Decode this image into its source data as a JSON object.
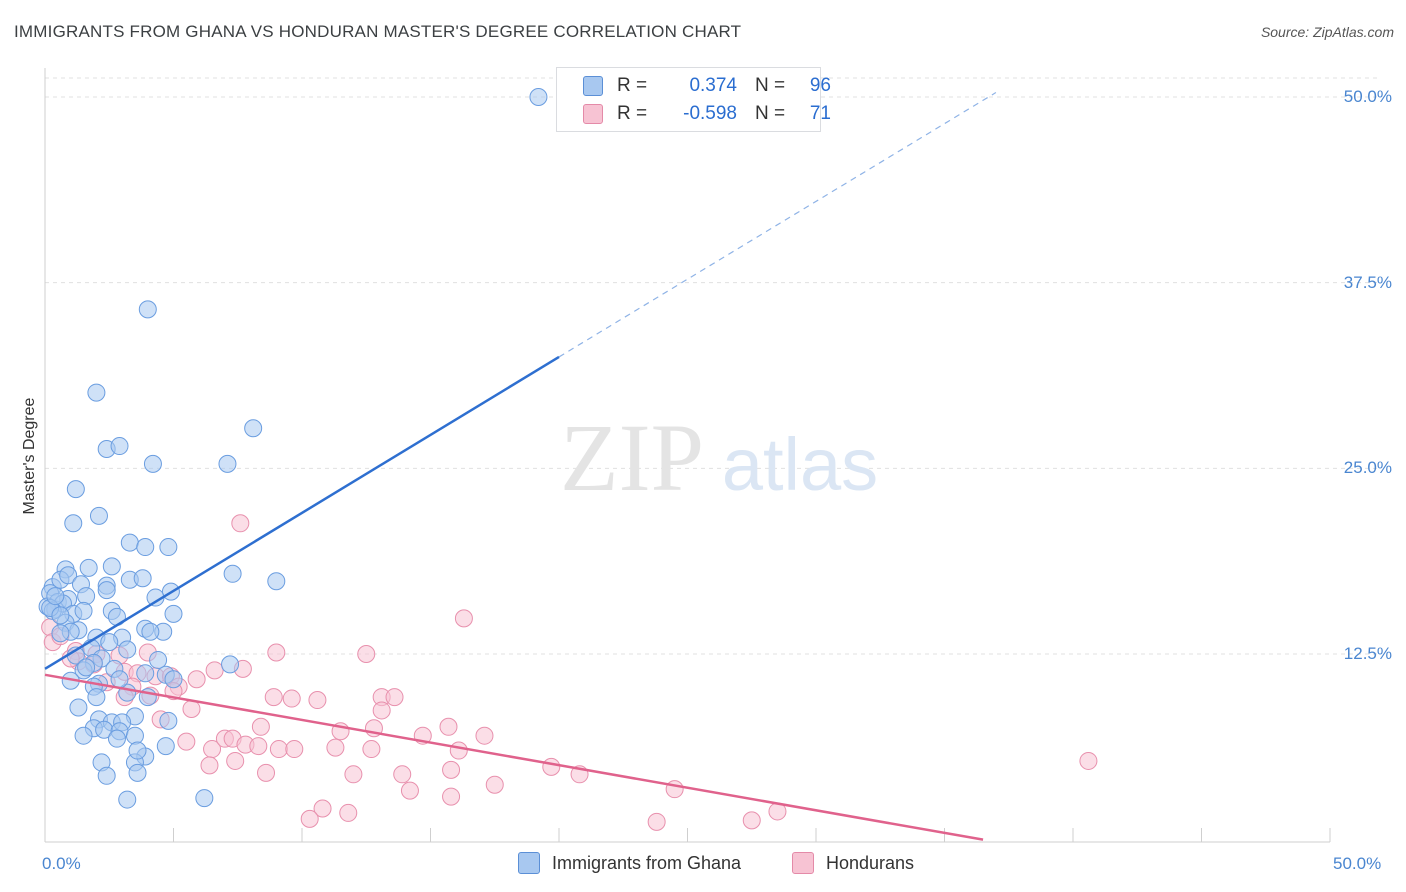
{
  "header": {
    "title": "IMMIGRANTS FROM GHANA VS HONDURAN MASTER'S DEGREE CORRELATION CHART",
    "source": "Source: ZipAtlas.com"
  },
  "watermark": {
    "zip": "ZIP",
    "atlas": "atlas"
  },
  "legend": {
    "rows": [
      {
        "r_label": "R =",
        "r_value": "0.374",
        "n_label": "N =",
        "n_value": "96",
        "color": "#a8c8f0",
        "border": "#5b8fd6"
      },
      {
        "r_label": "R =",
        "r_value": "-0.598",
        "n_label": "N =",
        "n_value": "71",
        "color": "#f7c3d3",
        "border": "#e48aa8"
      }
    ]
  },
  "bottom_legend": {
    "items": [
      {
        "label": "Immigrants from Ghana",
        "color": "#a8c8f0",
        "border": "#5b8fd6"
      },
      {
        "label": "Hondurans",
        "color": "#f7c3d3",
        "border": "#e48aa8"
      }
    ]
  },
  "chart_data": {
    "type": "scatter",
    "title": "IMMIGRANTS FROM GHANA VS HONDURAN MASTER'S DEGREE CORRELATION CHART",
    "xlabel": "",
    "ylabel": "Master's Degree",
    "xlim": [
      0,
      50
    ],
    "ylim": [
      0,
      50
    ],
    "y_ticks": [
      "12.5%",
      "25.0%",
      "37.5%",
      "50.0%"
    ],
    "y_tick_values": [
      12.5,
      25.0,
      37.5,
      50.0
    ],
    "x_tick_labels": [
      "0.0%",
      "50.0%"
    ],
    "x_tick_label_values": [
      0,
      50
    ],
    "x_minor_ticks": [
      5,
      10,
      15,
      20,
      25,
      30,
      35,
      40,
      45,
      50
    ],
    "grid": true,
    "series": [
      {
        "name": "Immigrants from Ghana",
        "color": "#a8c8f0",
        "stroke": "#6a9de0",
        "trend": {
          "x0": 0,
          "y0": 11.5,
          "x1": 20,
          "y1": 32.5,
          "dashed_to_x": 37,
          "dashed_to_y": 50.3,
          "color": "#2e6fd0"
        },
        "points": [
          [
            19.2,
            50.0
          ],
          [
            4.0,
            35.7
          ],
          [
            2.0,
            30.1
          ],
          [
            2.4,
            26.3
          ],
          [
            2.9,
            26.5
          ],
          [
            8.1,
            27.7
          ],
          [
            4.2,
            25.3
          ],
          [
            7.1,
            25.3
          ],
          [
            1.2,
            23.6
          ],
          [
            1.1,
            21.3
          ],
          [
            2.1,
            21.8
          ],
          [
            3.3,
            20.0
          ],
          [
            3.9,
            19.7
          ],
          [
            4.8,
            19.7
          ],
          [
            0.8,
            18.2
          ],
          [
            1.7,
            18.3
          ],
          [
            2.6,
            18.4
          ],
          [
            7.3,
            17.9
          ],
          [
            9.0,
            17.4
          ],
          [
            0.3,
            17.0
          ],
          [
            0.6,
            17.5
          ],
          [
            0.9,
            17.8
          ],
          [
            1.4,
            17.2
          ],
          [
            2.4,
            17.1
          ],
          [
            3.3,
            17.5
          ],
          [
            3.8,
            17.6
          ],
          [
            4.9,
            16.7
          ],
          [
            0.2,
            16.6
          ],
          [
            0.5,
            16.0
          ],
          [
            0.9,
            16.2
          ],
          [
            1.6,
            16.4
          ],
          [
            4.3,
            16.3
          ],
          [
            0.1,
            15.7
          ],
          [
            0.4,
            15.5
          ],
          [
            0.7,
            15.9
          ],
          [
            1.1,
            15.2
          ],
          [
            1.5,
            15.4
          ],
          [
            2.6,
            15.4
          ],
          [
            2.8,
            15.0
          ],
          [
            5.0,
            15.2
          ],
          [
            0.3,
            15.4
          ],
          [
            0.8,
            14.6
          ],
          [
            1.3,
            14.1
          ],
          [
            2.0,
            13.6
          ],
          [
            3.0,
            13.6
          ],
          [
            4.6,
            14.0
          ],
          [
            3.9,
            14.2
          ],
          [
            1.0,
            14.0
          ],
          [
            0.6,
            13.9
          ],
          [
            1.8,
            12.9
          ],
          [
            3.2,
            12.8
          ],
          [
            2.2,
            12.2
          ],
          [
            1.9,
            11.9
          ],
          [
            2.7,
            11.5
          ],
          [
            1.5,
            11.4
          ],
          [
            7.2,
            11.8
          ],
          [
            3.9,
            11.2
          ],
          [
            4.7,
            11.1
          ],
          [
            5.0,
            10.8
          ],
          [
            1.0,
            10.7
          ],
          [
            2.1,
            10.5
          ],
          [
            1.9,
            10.3
          ],
          [
            2.0,
            9.6
          ],
          [
            3.2,
            9.9
          ],
          [
            4.0,
            9.6
          ],
          [
            1.3,
            8.9
          ],
          [
            3.5,
            8.3
          ],
          [
            4.8,
            8.0
          ],
          [
            2.1,
            8.1
          ],
          [
            2.6,
            7.9
          ],
          [
            3.0,
            7.9
          ],
          [
            1.9,
            7.5
          ],
          [
            2.3,
            7.4
          ],
          [
            2.9,
            7.3
          ],
          [
            3.5,
            7.0
          ],
          [
            1.5,
            7.0
          ],
          [
            2.8,
            6.8
          ],
          [
            4.7,
            6.3
          ],
          [
            3.9,
            5.6
          ],
          [
            2.2,
            5.2
          ],
          [
            3.5,
            5.2
          ],
          [
            3.6,
            4.5
          ],
          [
            2.4,
            4.3
          ],
          [
            3.2,
            2.7
          ],
          [
            6.2,
            2.8
          ],
          [
            4.1,
            14.0
          ],
          [
            2.4,
            16.8
          ],
          [
            0.2,
            15.6
          ],
          [
            0.6,
            15.1
          ],
          [
            1.2,
            12.4
          ],
          [
            2.9,
            10.8
          ],
          [
            3.6,
            6.0
          ],
          [
            1.6,
            11.6
          ],
          [
            2.5,
            13.3
          ],
          [
            4.4,
            12.1
          ],
          [
            0.4,
            16.4
          ]
        ]
      },
      {
        "name": "Hondurans",
        "color": "#f7c3d3",
        "stroke": "#e890ad",
        "trend": {
          "x0": 0,
          "y0": 11.1,
          "x1": 36.5,
          "y1": 0,
          "color": "#e0628c"
        },
        "points": [
          [
            0.2,
            14.3
          ],
          [
            0.3,
            13.3
          ],
          [
            0.6,
            13.7
          ],
          [
            1.2,
            12.7
          ],
          [
            2.0,
            12.5
          ],
          [
            2.9,
            12.4
          ],
          [
            1.3,
            12.0
          ],
          [
            1.9,
            11.8
          ],
          [
            3.1,
            11.3
          ],
          [
            3.6,
            11.2
          ],
          [
            4.3,
            11.0
          ],
          [
            4.9,
            11.0
          ],
          [
            5.9,
            10.8
          ],
          [
            6.6,
            11.4
          ],
          [
            2.4,
            10.6
          ],
          [
            3.4,
            10.3
          ],
          [
            5.2,
            10.3
          ],
          [
            5.0,
            10.0
          ],
          [
            9.0,
            12.6
          ],
          [
            12.5,
            12.5
          ],
          [
            16.3,
            14.9
          ],
          [
            7.6,
            21.3
          ],
          [
            7.7,
            11.5
          ],
          [
            3.1,
            9.6
          ],
          [
            4.1,
            9.7
          ],
          [
            8.9,
            9.6
          ],
          [
            9.6,
            9.5
          ],
          [
            10.6,
            9.4
          ],
          [
            13.1,
            9.6
          ],
          [
            13.6,
            9.6
          ],
          [
            13.1,
            8.7
          ],
          [
            5.7,
            8.8
          ],
          [
            4.5,
            8.1
          ],
          [
            8.4,
            7.6
          ],
          [
            11.5,
            7.3
          ],
          [
            12.8,
            7.5
          ],
          [
            14.7,
            7.0
          ],
          [
            15.7,
            7.6
          ],
          [
            17.1,
            7.0
          ],
          [
            5.5,
            6.6
          ],
          [
            6.5,
            6.1
          ],
          [
            7.0,
            6.8
          ],
          [
            7.3,
            6.8
          ],
          [
            7.8,
            6.4
          ],
          [
            8.3,
            6.3
          ],
          [
            9.1,
            6.1
          ],
          [
            9.7,
            6.1
          ],
          [
            11.3,
            6.2
          ],
          [
            12.7,
            6.1
          ],
          [
            16.1,
            6.0
          ],
          [
            7.4,
            5.3
          ],
          [
            6.4,
            5.0
          ],
          [
            8.6,
            4.5
          ],
          [
            12.0,
            4.4
          ],
          [
            13.9,
            4.4
          ],
          [
            15.8,
            4.7
          ],
          [
            19.7,
            4.9
          ],
          [
            20.8,
            4.4
          ],
          [
            17.5,
            3.7
          ],
          [
            14.2,
            3.3
          ],
          [
            15.8,
            2.9
          ],
          [
            24.5,
            3.4
          ],
          [
            10.8,
            2.1
          ],
          [
            11.8,
            1.8
          ],
          [
            10.3,
            1.4
          ],
          [
            23.8,
            1.2
          ],
          [
            27.5,
            1.3
          ],
          [
            28.5,
            1.9
          ],
          [
            40.6,
            5.3
          ],
          [
            1.0,
            12.2
          ],
          [
            4.0,
            12.6
          ]
        ]
      }
    ]
  }
}
